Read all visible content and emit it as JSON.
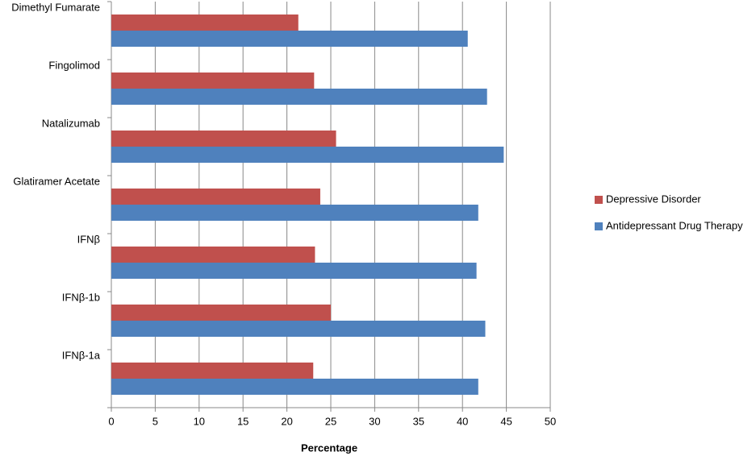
{
  "chart_data": {
    "type": "hbar",
    "x_label": "Percentage",
    "categories": [
      "Dimethyl Fumarate",
      "Fingolimod",
      "Natalizumab",
      "Glatiramer Acetate",
      "IFNβ",
      "IFNβ-1b",
      "IFNβ-1a"
    ],
    "series": [
      {
        "name": "Depressive Disorder",
        "color": "#c0504d",
        "values": [
          21.3,
          23.1,
          25.6,
          23.8,
          23.2,
          25.0,
          23.0
        ]
      },
      {
        "name": "Antidepressant Drug Therapy",
        "color": "#4f81bd",
        "values": [
          40.6,
          42.8,
          44.7,
          41.8,
          41.6,
          42.6,
          41.8
        ]
      }
    ],
    "xlim": [
      0,
      50
    ],
    "xticks": [
      0,
      5,
      10,
      15,
      20,
      25,
      30,
      35,
      40,
      45,
      50
    ],
    "grid": true,
    "legend": "right"
  }
}
